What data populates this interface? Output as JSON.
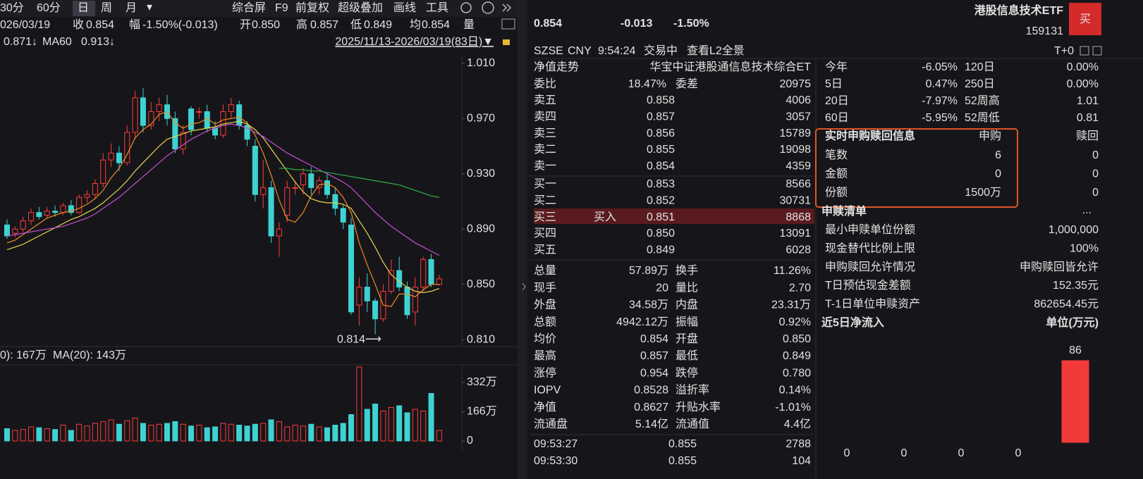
{
  "toolbar": {
    "periods": [
      "30分",
      "60分",
      "日",
      "周",
      "月"
    ],
    "dropdown": "▾",
    "tools": [
      "综合屏",
      "F9",
      "前复权",
      "超级叠加",
      "画线",
      "工具"
    ]
  },
  "info_bar": {
    "date": "026/03/19",
    "items": [
      [
        "收",
        "0.854",
        "#2bd160"
      ],
      [
        "幅",
        "-1.50%(-0.013)",
        "#2bd160"
      ],
      [
        "开",
        "0.850",
        "#2bd160"
      ],
      [
        "高",
        "0.857",
        "#ff3b3b"
      ],
      [
        "低",
        "0.849",
        "#2bd160"
      ],
      [
        "均",
        "0.854",
        "#2bd160"
      ]
    ],
    "volume_label": "量"
  },
  "range_label": "2025/11/13-2026/03/19(83日)▼",
  "quote": {
    "price": "0.854",
    "change": "-0.013",
    "change_pct": "-1.50%",
    "name": "港股信息技术ETF",
    "code": "159131",
    "buy_button": "买",
    "exchange": "SZSE",
    "currency": "CNY",
    "time": "9:54:24",
    "status": "交易中",
    "l2_link": "查看L2全景",
    "t0": "T+0"
  },
  "order_book": {
    "header": [
      "净值走势",
      "华宝中证港股通信息技术综合ET"
    ],
    "ratio": [
      "委比",
      "18.47%",
      "委差",
      "20975"
    ],
    "asks": [
      [
        "卖五",
        "0.858",
        "4006"
      ],
      [
        "卖四",
        "0.857",
        "3057"
      ],
      [
        "卖三",
        "0.856",
        "15789"
      ],
      [
        "卖二",
        "0.855",
        "19098"
      ],
      [
        "卖一",
        "0.854",
        "4359"
      ]
    ],
    "bids": [
      [
        "买一",
        "0.853",
        "8566"
      ],
      [
        "买二",
        "0.852",
        "30731"
      ],
      [
        "买三",
        "0.851",
        "8868"
      ],
      [
        "买四",
        "0.850",
        "13091"
      ],
      [
        "买五",
        "0.849",
        "6028"
      ]
    ],
    "buy_tag": "买入"
  },
  "stats": [
    {
      "cells": [
        "总量",
        "57.89万",
        "换手",
        "11.26%"
      ],
      "colors": [
        "#e2e2e2",
        "#e2e2e2"
      ]
    },
    {
      "cells": [
        "现手",
        "20",
        "量比",
        "2.70"
      ],
      "colors": [
        "#e2e2e2",
        "#e2e2e2"
      ]
    },
    {
      "cells": [
        "外盘",
        "34.58万",
        "内盘",
        "23.31万"
      ],
      "colors": [
        "#ff3b3b",
        "#2bd160"
      ]
    },
    {
      "cells": [
        "总额",
        "4942.12万",
        "振幅",
        "0.92%"
      ],
      "colors": [
        "#e2e2e2",
        "#e2e2e2"
      ]
    },
    {
      "cells": [
        "均价",
        "0.854",
        "开盘",
        "0.850"
      ],
      "colors": [
        "#2bd160",
        "#2bd160"
      ]
    },
    {
      "cells": [
        "最高",
        "0.857",
        "最低",
        "0.849"
      ],
      "colors": [
        "#ff3b3b",
        "#2bd160"
      ]
    },
    {
      "cells": [
        "涨停",
        "0.954",
        "跌停",
        "0.780"
      ],
      "colors": [
        "#ff3b3b",
        "#2bd160"
      ]
    },
    {
      "cells": [
        "IOPV",
        "0.8528",
        "溢折率",
        "0.14%"
      ],
      "colors": [
        "#e2e2e2",
        "#ff3b3b"
      ]
    },
    {
      "cells": [
        "净值",
        "0.8627",
        "升贴水率",
        "-1.01%"
      ],
      "colors": [
        "#ff3b3b",
        "#2bd160"
      ]
    },
    {
      "cells": [
        "流通盘",
        "5.14亿",
        "流通值",
        "4.4亿"
      ],
      "colors": [
        "#e2e2e2",
        "#e2e2e2"
      ]
    }
  ],
  "trades": [
    {
      "cells": [
        "09:53:27",
        "0.855",
        "2788"
      ],
      "colors": [
        "#2bd160",
        "#ff3b3b"
      ]
    },
    {
      "cells": [
        "09:53:30",
        "0.855",
        "104"
      ],
      "colors": [
        "#2bd160",
        "#2bd160"
      ]
    }
  ],
  "performance": [
    {
      "cells": [
        "今年",
        "-6.05%",
        "120日",
        "0.00%"
      ],
      "color": "#2bd160"
    },
    {
      "cells": [
        "5日",
        "0.47%",
        "250日",
        "0.00%"
      ],
      "color": "#ff3b3b"
    },
    {
      "cells": [
        "20日",
        "-7.97%",
        "52周高",
        "1.01"
      ],
      "color": "#2bd160"
    },
    {
      "cells": [
        "60日",
        "-5.95%",
        "52周低",
        "0.81"
      ],
      "color": "#2bd160"
    }
  ],
  "creation": {
    "title": "实时申购赎回信息",
    "headers": [
      "申购",
      "赎回"
    ],
    "rows": [
      [
        "笔数",
        "6",
        "0"
      ],
      [
        "金额",
        "0",
        "0"
      ],
      [
        "份额",
        "1500万",
        "0"
      ]
    ]
  },
  "creation_list": {
    "title": "申赎清单",
    "more": "...",
    "rows": [
      [
        "最小申赎单位份额",
        "1,000,000"
      ],
      [
        "现金替代比例上限",
        "100%"
      ],
      [
        "申购赎回允许情况",
        "申购赎回皆允许"
      ],
      [
        "T日预估现金差额",
        "152.35元"
      ],
      [
        "T-1日单位申赎资产",
        "862654.45元"
      ]
    ]
  },
  "chart_data": [
    {
      "type": "candlestick",
      "up_color": "#ff3b3b",
      "down_color": "#3fd2d2",
      "open": [
        0.893,
        0.887,
        0.89,
        0.896,
        0.902,
        0.9,
        0.903,
        0.902,
        0.907,
        0.902,
        0.913,
        0.915,
        0.923,
        0.94,
        0.945,
        0.938,
        0.96,
        0.985,
        0.965,
        0.975,
        0.98,
        0.97,
        0.948,
        0.977,
        0.975,
        0.975,
        0.963,
        0.958,
        0.975,
        0.98,
        0.965,
        0.95,
        0.915,
        0.92,
        0.885,
        0.9,
        0.92,
        0.922,
        0.93,
        0.92,
        0.925,
        0.915,
        0.905,
        0.893,
        0.835,
        0.848,
        0.838,
        0.825,
        0.845,
        0.86,
        0.848,
        0.83,
        0.848,
        0.868,
        0.85
      ],
      "close": [
        0.885,
        0.89,
        0.896,
        0.902,
        0.899,
        0.903,
        0.902,
        0.907,
        0.902,
        0.913,
        0.915,
        0.923,
        0.94,
        0.945,
        0.938,
        0.96,
        0.985,
        0.965,
        0.975,
        0.98,
        0.97,
        0.948,
        0.96,
        0.962,
        0.975,
        0.963,
        0.958,
        0.975,
        0.98,
        0.965,
        0.955,
        0.915,
        0.92,
        0.885,
        0.89,
        0.92,
        0.92,
        0.93,
        0.92,
        0.925,
        0.915,
        0.905,
        0.895,
        0.83,
        0.848,
        0.838,
        0.825,
        0.845,
        0.86,
        0.848,
        0.828,
        0.848,
        0.868,
        0.85,
        0.854
      ],
      "high": [
        0.897,
        0.892,
        0.899,
        0.905,
        0.906,
        0.906,
        0.907,
        0.909,
        0.911,
        0.915,
        0.918,
        0.926,
        0.945,
        0.952,
        0.95,
        0.965,
        0.99,
        0.992,
        0.982,
        0.985,
        0.987,
        0.975,
        0.965,
        0.979,
        0.978,
        0.98,
        0.968,
        0.98,
        0.985,
        0.983,
        0.968,
        0.955,
        0.94,
        0.925,
        0.895,
        0.925,
        0.925,
        0.934,
        0.935,
        0.928,
        0.93,
        0.92,
        0.908,
        0.898,
        0.855,
        0.858,
        0.84,
        0.85,
        0.868,
        0.87,
        0.852,
        0.855,
        0.87,
        0.872,
        0.857
      ],
      "low": [
        0.883,
        0.884,
        0.888,
        0.893,
        0.897,
        0.898,
        0.899,
        0.9,
        0.9,
        0.901,
        0.909,
        0.912,
        0.92,
        0.935,
        0.932,
        0.936,
        0.955,
        0.96,
        0.962,
        0.968,
        0.965,
        0.945,
        0.944,
        0.958,
        0.97,
        0.96,
        0.955,
        0.956,
        0.97,
        0.962,
        0.95,
        0.91,
        0.905,
        0.88,
        0.87,
        0.895,
        0.915,
        0.915,
        0.915,
        0.915,
        0.912,
        0.9,
        0.89,
        0.828,
        0.82,
        0.83,
        0.814,
        0.823,
        0.843,
        0.845,
        0.825,
        0.82,
        0.845,
        0.848,
        0.849
      ],
      "lines": [
        {
          "color": "#f08a24",
          "values": [
            0.88,
            0.882,
            0.886,
            0.89,
            0.894,
            0.898,
            0.9,
            0.902,
            0.903,
            0.905,
            0.908,
            0.912,
            0.918,
            0.927,
            0.934,
            0.944,
            0.956,
            0.962,
            0.966,
            0.973,
            0.975,
            0.967,
            0.963,
            0.966,
            0.967,
            0.97,
            0.966,
            0.969,
            0.97,
            0.971,
            0.967,
            0.958,
            0.945,
            0.929,
            0.911,
            0.897,
            0.895,
            0.902,
            0.914,
            0.922,
            0.923,
            0.92,
            0.913,
            0.902,
            0.88,
            0.864,
            0.85,
            0.835,
            0.834,
            0.843,
            0.843,
            0.841,
            0.846,
            0.85,
            0.85
          ]
        },
        {
          "color": "#e8d44d",
          "values": [
            0.875,
            0.877,
            0.879,
            0.882,
            0.885,
            0.888,
            0.891,
            0.894,
            0.897,
            0.899,
            0.902,
            0.905,
            0.909,
            0.914,
            0.919,
            0.925,
            0.932,
            0.938,
            0.944,
            0.95,
            0.955,
            0.957,
            0.959,
            0.961,
            0.962,
            0.963,
            0.964,
            0.966,
            0.967,
            0.968,
            0.966,
            0.962,
            0.956,
            0.948,
            0.94,
            0.932,
            0.924,
            0.917,
            0.912,
            0.91,
            0.909,
            0.909,
            0.908,
            0.905,
            0.896,
            0.887,
            0.877,
            0.866,
            0.857,
            0.852,
            0.848,
            0.845,
            0.844,
            0.845,
            0.847
          ]
        },
        {
          "color": "#c64fd0",
          "values": [
            0.885,
            0.886,
            0.887,
            0.888,
            0.889,
            0.89,
            0.891,
            0.892,
            0.894,
            0.896,
            0.898,
            0.901,
            0.905,
            0.909,
            0.913,
            0.918,
            0.923,
            0.928,
            0.933,
            0.938,
            0.943,
            0.947,
            0.951,
            0.955,
            0.958,
            0.961,
            0.963,
            0.965,
            0.966,
            0.965,
            0.963,
            0.96,
            0.957,
            0.953,
            0.949,
            0.945,
            0.942,
            0.939,
            0.936,
            0.933,
            0.93,
            0.927,
            0.924,
            0.92,
            0.914,
            0.908,
            0.902,
            0.897,
            0.892,
            0.888,
            0.884,
            0.88,
            0.877,
            0.874,
            0.871
          ]
        },
        {
          "color": "#2fae4a",
          "values": [
            null,
            null,
            null,
            null,
            null,
            null,
            null,
            null,
            null,
            null,
            null,
            null,
            null,
            null,
            null,
            null,
            null,
            null,
            null,
            null,
            null,
            null,
            null,
            null,
            null,
            null,
            null,
            null,
            null,
            null,
            null,
            null,
            null,
            null,
            0.934,
            0.934,
            0.933,
            0.933,
            0.932,
            0.932,
            0.931,
            0.93,
            0.929,
            0.928,
            0.927,
            0.926,
            0.925,
            0.924,
            0.923,
            0.922,
            0.92,
            0.918,
            0.916,
            0.914,
            0.913
          ]
        }
      ],
      "legend": [
        {
          "text": "0.871↓",
          "color": "#c64fd0"
        },
        {
          "text": "MA60",
          "color": "#e2e2e2"
        },
        {
          "text": "0.913↓",
          "color": "#2bd160"
        }
      ],
      "annotation": "0.814⟶",
      "ylim": [
        0.806,
        1.015
      ],
      "yticks": [
        {
          "value": 1.01,
          "label": "1.010"
        },
        {
          "value": 0.97,
          "label": "0.970"
        },
        {
          "value": 0.93,
          "label": "0.930"
        },
        {
          "value": 0.89,
          "label": "0.890"
        },
        {
          "value": 0.85,
          "label": "0.850"
        },
        {
          "value": 0.81,
          "label": "0.810"
        }
      ]
    },
    {
      "type": "bar",
      "legend": [
        {
          "text": "0): 167万",
          "color": "#f08a24"
        },
        {
          "text": "MA(20): 143万",
          "color": "#c64fd0"
        }
      ],
      "values": [
        70,
        60,
        65,
        80,
        75,
        70,
        65,
        90,
        60,
        95,
        85,
        100,
        110,
        120,
        95,
        115,
        130,
        100,
        90,
        95,
        100,
        110,
        95,
        85,
        90,
        75,
        80,
        100,
        95,
        90,
        85,
        95,
        100,
        120,
        110,
        80,
        90,
        85,
        95,
        80,
        75,
        90,
        100,
        150,
        420,
        180,
        210,
        170,
        190,
        200,
        160,
        180,
        170,
        270,
        60
      ],
      "ylim": [
        0,
        420
      ],
      "yticks": [
        {
          "value": 332,
          "label": "332万"
        },
        {
          "value": 166,
          "label": "166万"
        },
        0
      ]
    },
    {
      "type": "bar",
      "title": "近5日净流入",
      "unit": "单位(万元)",
      "values": [
        0,
        0,
        0,
        0,
        86
      ],
      "positive_color": "#f23a3a",
      "zero_color": "#2bd160",
      "ylim": [
        0,
        86
      ]
    }
  ]
}
